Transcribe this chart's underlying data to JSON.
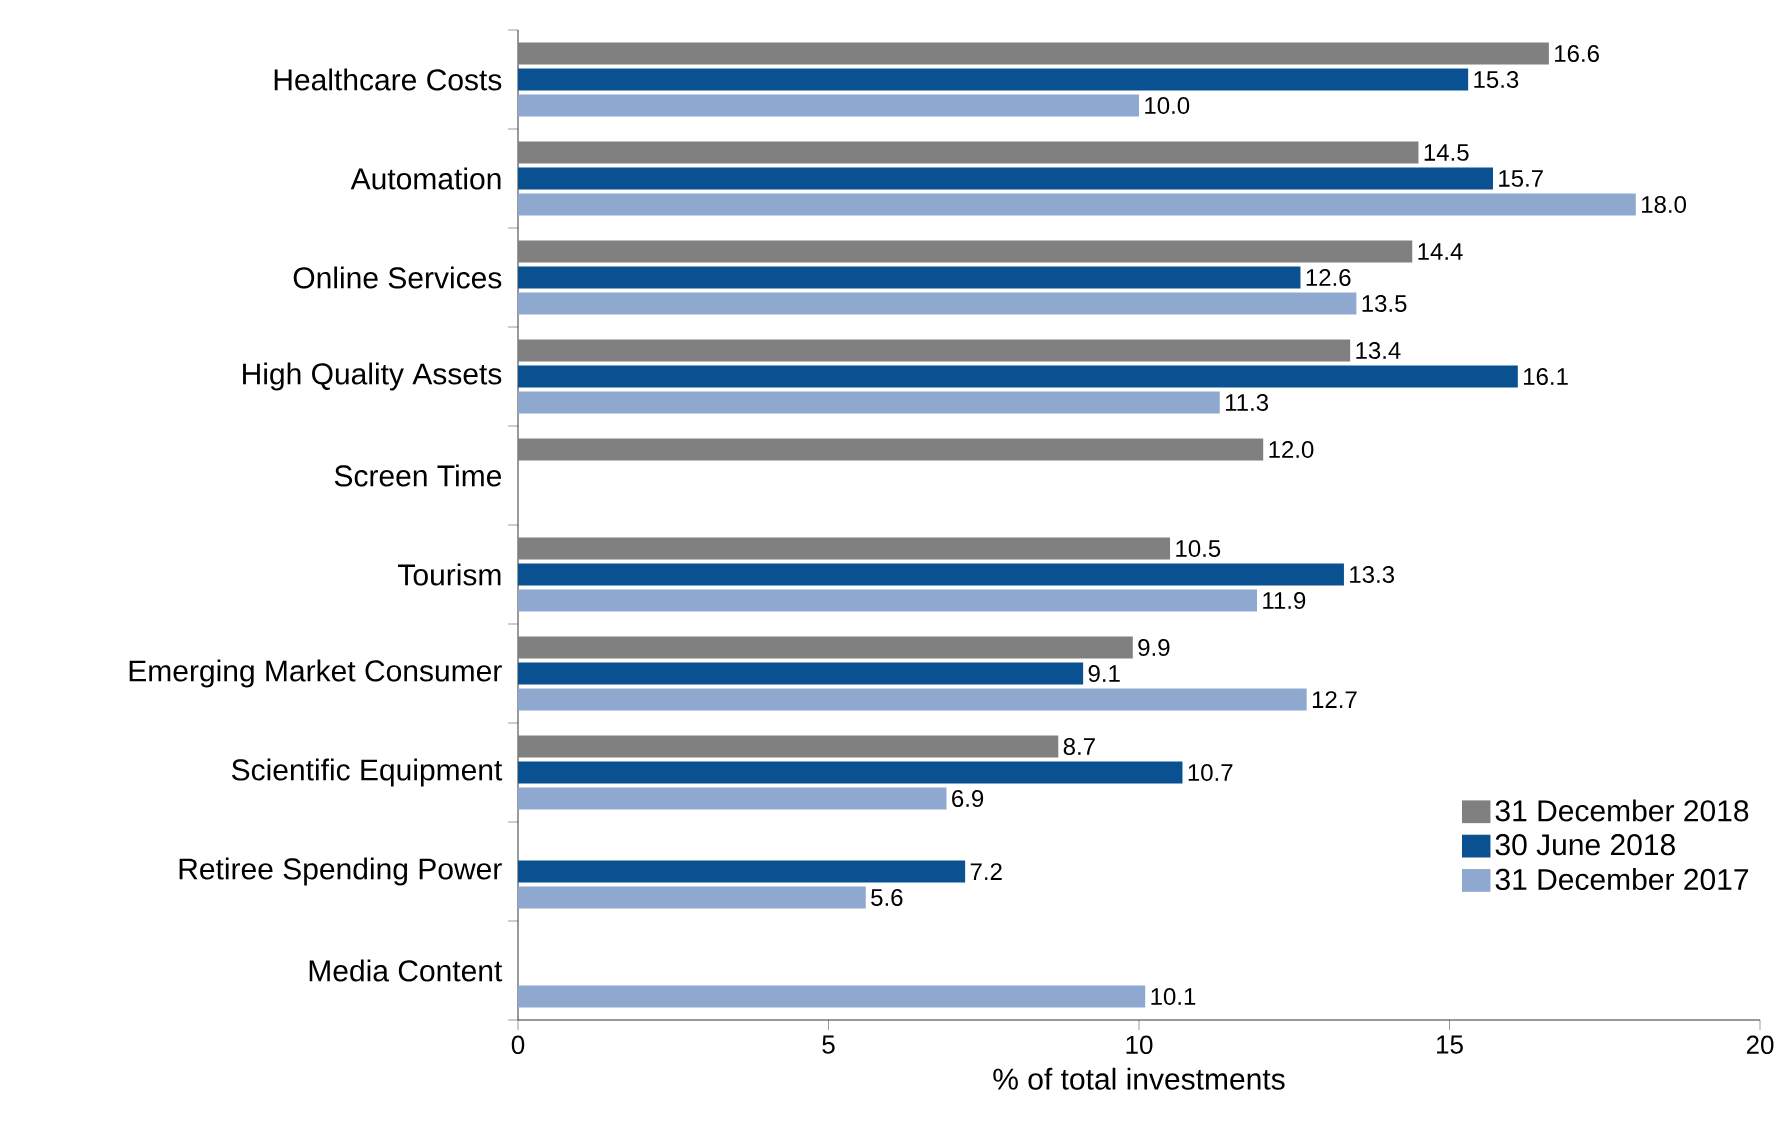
{
  "chart_data": {
    "type": "bar",
    "orientation": "horizontal",
    "xlabel": "% of total investments",
    "categories": [
      "Healthcare Costs",
      "Automation",
      "Online Services",
      "High Quality Assets",
      "Screen Time",
      "Tourism",
      "Emerging Market Consumer",
      "Scientific Equipment",
      "Retiree Spending Power",
      "Media Content"
    ],
    "series": [
      {
        "name": "31 December 2018",
        "color": "#808080",
        "values": [
          16.6,
          14.5,
          14.4,
          13.4,
          12.0,
          10.5,
          9.9,
          8.7,
          null,
          null
        ],
        "value_labels": [
          "16.6",
          "14.5",
          "14.4",
          "13.4",
          "12.0",
          "10.5",
          "9.9",
          "8.7",
          null,
          null
        ]
      },
      {
        "name": "30 June 2018",
        "color": "#0a5191",
        "values": [
          15.3,
          15.7,
          12.6,
          16.1,
          null,
          13.3,
          9.1,
          10.7,
          7.2,
          null
        ],
        "value_labels": [
          "15.3",
          "15.7",
          "12.6",
          "16.1",
          null,
          "13.3",
          "9.1",
          "10.7",
          "7.2",
          null
        ]
      },
      {
        "name": "31 December 2017",
        "color": "#8fa8d0",
        "values": [
          10.0,
          18.0,
          13.5,
          11.3,
          null,
          11.9,
          12.7,
          6.9,
          5.6,
          10.1
        ],
        "value_labels": [
          "10.0",
          "18.0",
          "13.5",
          "11.3",
          null,
          "11.9",
          "12.7",
          "6.9",
          "5.6",
          "10.1"
        ]
      }
    ],
    "xlim": [
      0,
      20
    ],
    "xticks": [
      0,
      5,
      10,
      15,
      20
    ],
    "legend": "bottom right"
  }
}
